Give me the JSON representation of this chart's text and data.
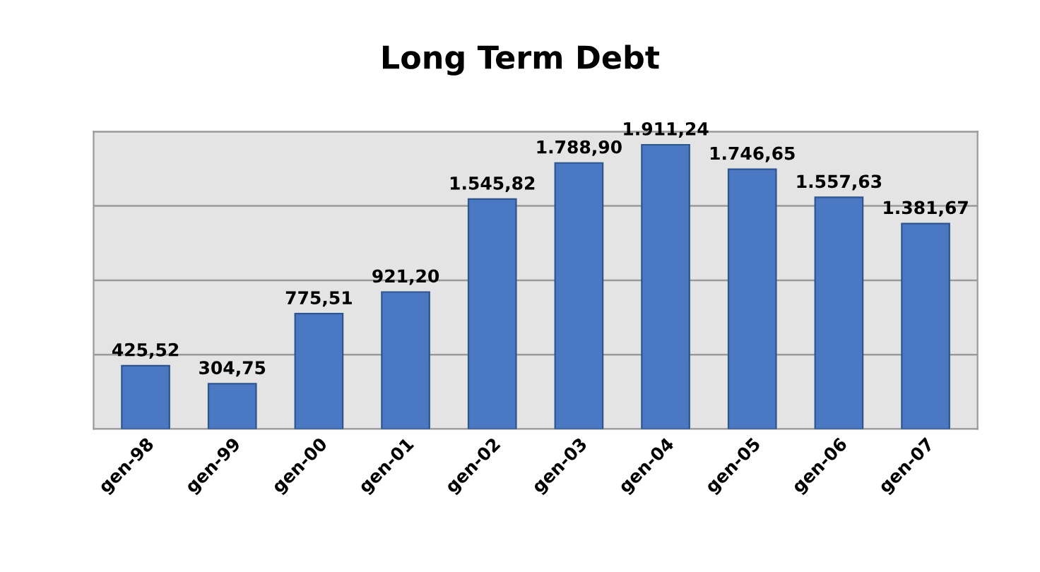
{
  "chart_data": {
    "type": "bar",
    "title": "Long Term Debt",
    "categories": [
      "gen-98",
      "gen-99",
      "gen-00",
      "gen-01",
      "gen-02",
      "gen-03",
      "gen-04",
      "gen-05",
      "gen-06",
      "gen-07"
    ],
    "values": [
      425.52,
      304.75,
      775.51,
      921.2,
      1545.82,
      1788.9,
      1911.24,
      1746.65,
      1557.63,
      1381.67
    ],
    "value_labels": [
      "425,52",
      "304,75",
      "775,51",
      "921,20",
      "1.545,82",
      "1.788,90",
      "1.911,24",
      "1.746,65",
      "1.557,63",
      "1.381,67"
    ],
    "color": "#4a78c2",
    "ylim": [
      0,
      2000
    ],
    "yticks": [
      {
        "value": 0,
        "label": null
      },
      {
        "value": 500,
        "label": null
      },
      {
        "value": 1000,
        "label": null
      },
      {
        "value": 1500,
        "label": null
      },
      {
        "value": 2000,
        "label": null
      }
    ],
    "grid": "y",
    "tick_labels": "x"
  }
}
